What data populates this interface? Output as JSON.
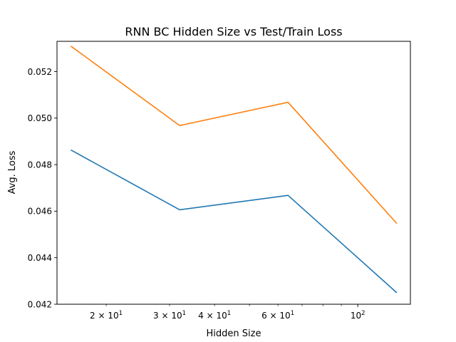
{
  "chart_data": {
    "type": "line",
    "title": "RNN BC Hidden Size vs Test/Train Loss",
    "xlabel": "Hidden Size",
    "ylabel": "Avg. Loss",
    "x_scale": "log",
    "x": [
      16,
      32,
      64,
      128
    ],
    "xlim": [
      14.6,
      140
    ],
    "ylim": [
      0.042,
      0.0533
    ],
    "y_ticks": [
      "0.042",
      "0.044",
      "0.046",
      "0.048",
      "0.050",
      "0.052"
    ],
    "x_major_ticks": [
      {
        "base": "10",
        "exp": "2",
        "value": 100
      }
    ],
    "x_minor_ticks": [
      {
        "value": 20,
        "mult": "2",
        "base": "10",
        "exp": "1"
      },
      {
        "value": 30,
        "mult": "3",
        "base": "10",
        "exp": "1"
      },
      {
        "value": 40,
        "mult": "4",
        "base": "10",
        "exp": "1"
      },
      {
        "value": 60,
        "mult": "6",
        "base": "10",
        "exp": "1"
      }
    ],
    "x_minor_ticks_unlabeled": [
      50,
      70,
      80,
      90
    ],
    "series": [
      {
        "values": [
          0.04862,
          0.04606,
          0.04668,
          0.04251
        ],
        "color": "#1f77b4"
      },
      {
        "values": [
          0.05308,
          0.04968,
          0.05068,
          0.04549
        ],
        "color": "#ff7f0e"
      }
    ],
    "grid": false,
    "legend": "none"
  }
}
